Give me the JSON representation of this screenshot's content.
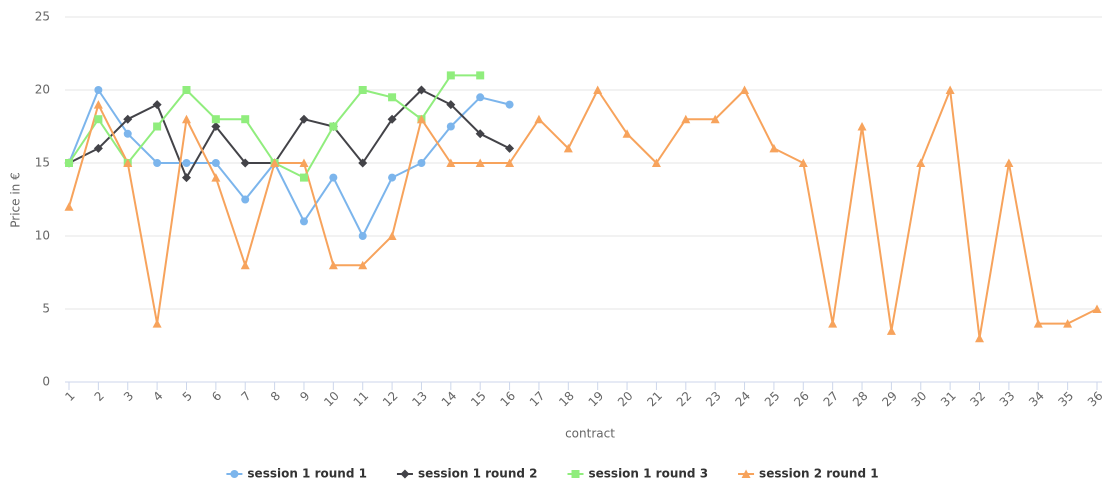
{
  "chart_data": {
    "type": "line",
    "x_label": "contract",
    "y_label": "Price in €",
    "categories": [
      "1",
      "2",
      "3",
      "4",
      "5",
      "6",
      "7",
      "8",
      "9",
      "10",
      "11",
      "12",
      "13",
      "14",
      "15",
      "16",
      "17",
      "18",
      "19",
      "20",
      "21",
      "22",
      "23",
      "24",
      "25",
      "26",
      "27",
      "28",
      "29",
      "30",
      "31",
      "32",
      "33",
      "34",
      "35",
      "36"
    ],
    "ylim": [
      0,
      25
    ],
    "yticks": [
      0,
      5,
      10,
      15,
      20,
      25
    ],
    "grid": true,
    "legend": "bottom",
    "series": [
      {
        "name": "session 1 round 1",
        "color": "#7cb5ec",
        "marker": "circle",
        "values": [
          15,
          20,
          17,
          15,
          15,
          15,
          12.5,
          15,
          11,
          14,
          10,
          14,
          15,
          17.5,
          19.5,
          19,
          null,
          null,
          null,
          null,
          null,
          null,
          null,
          null,
          null,
          null,
          null,
          null,
          null,
          null,
          null,
          null,
          null,
          null,
          null,
          null
        ]
      },
      {
        "name": "session 1 round 2",
        "color": "#434348",
        "marker": "diamond",
        "values": [
          15,
          16,
          18,
          19,
          14,
          17.5,
          15,
          15,
          18,
          17.5,
          15,
          18,
          20,
          19,
          17,
          16,
          null,
          null,
          null,
          null,
          null,
          null,
          null,
          null,
          null,
          null,
          null,
          null,
          null,
          null,
          null,
          null,
          null,
          null,
          null,
          null
        ]
      },
      {
        "name": "session 1 round 3",
        "color": "#90ed7d",
        "marker": "square",
        "values": [
          15,
          18,
          15,
          17.5,
          20,
          18,
          18,
          15,
          14,
          17.5,
          20,
          19.5,
          18,
          21,
          21,
          null,
          null,
          null,
          null,
          null,
          null,
          null,
          null,
          null,
          null,
          null,
          null,
          null,
          null,
          null,
          null,
          null,
          null,
          null,
          null,
          null
        ]
      },
      {
        "name": "session 2 round 1",
        "color": "#f7a35c",
        "marker": "triangle",
        "values": [
          12,
          19,
          15,
          4,
          18,
          14,
          8,
          15,
          15,
          8,
          8,
          10,
          18,
          15,
          15,
          15,
          18,
          16,
          20,
          17,
          15,
          18,
          18,
          20,
          16,
          15,
          4,
          17.5,
          3.5,
          15,
          20,
          3,
          15,
          4,
          4,
          5
        ]
      }
    ]
  }
}
